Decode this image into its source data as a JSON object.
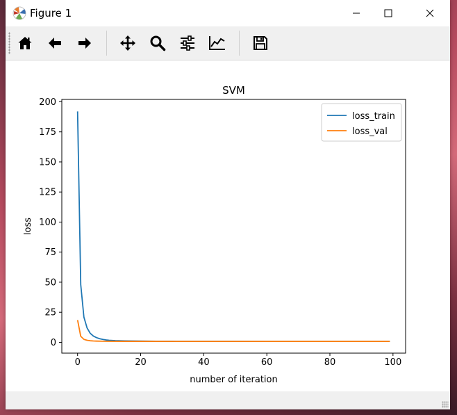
{
  "window": {
    "title": "Figure 1",
    "minimize_icon": "minimize-icon",
    "maximize_icon": "maximize-icon",
    "close_icon": "close-icon"
  },
  "toolbar": {
    "tools": [
      {
        "name": "home-button",
        "icon": "home-icon"
      },
      {
        "name": "back-button",
        "icon": "arrow-left-icon"
      },
      {
        "name": "forward-button",
        "icon": "arrow-right-icon"
      },
      {
        "name": "pan-button",
        "icon": "move-icon"
      },
      {
        "name": "zoom-button",
        "icon": "magnifier-icon"
      },
      {
        "name": "subplots-button",
        "icon": "sliders-icon"
      },
      {
        "name": "edit-axis-button",
        "icon": "line-chart-icon"
      },
      {
        "name": "save-button",
        "icon": "floppy-disk-icon"
      }
    ]
  },
  "chart_data": {
    "type": "line",
    "title": "SVM",
    "xlabel": "number of iteration",
    "ylabel": "loss",
    "xlim": [
      -5,
      104
    ],
    "ylim": [
      -9,
      202
    ],
    "xticks": [
      0,
      20,
      40,
      60,
      80,
      100
    ],
    "yticks": [
      0,
      25,
      50,
      75,
      100,
      125,
      150,
      175,
      200
    ],
    "grid": false,
    "legend": "top-right",
    "series": [
      {
        "name": "loss_train",
        "color": "#1f77b4",
        "x": [
          0,
          1,
          2,
          3,
          4,
          5,
          6,
          7,
          8,
          9,
          10,
          12,
          15,
          20,
          25,
          30,
          40,
          50,
          60,
          70,
          80,
          90,
          99
        ],
        "y": [
          192,
          48,
          21,
          12,
          7.5,
          5.2,
          3.9,
          3.0,
          2.4,
          2.0,
          1.7,
          1.4,
          1.2,
          1.0,
          0.9,
          0.85,
          0.8,
          0.78,
          0.76,
          0.75,
          0.75,
          0.74,
          0.74
        ]
      },
      {
        "name": "loss_val",
        "color": "#ff7f0e",
        "x": [
          0,
          1,
          2,
          3,
          4,
          5,
          6,
          8,
          10,
          15,
          20,
          30,
          40,
          50,
          60,
          70,
          80,
          90,
          99
        ],
        "y": [
          18.5,
          5.0,
          2.5,
          1.7,
          1.3,
          1.1,
          1.0,
          0.9,
          0.85,
          0.8,
          0.78,
          0.76,
          0.75,
          0.75,
          0.74,
          0.74,
          0.74,
          0.74,
          0.74
        ]
      }
    ]
  }
}
